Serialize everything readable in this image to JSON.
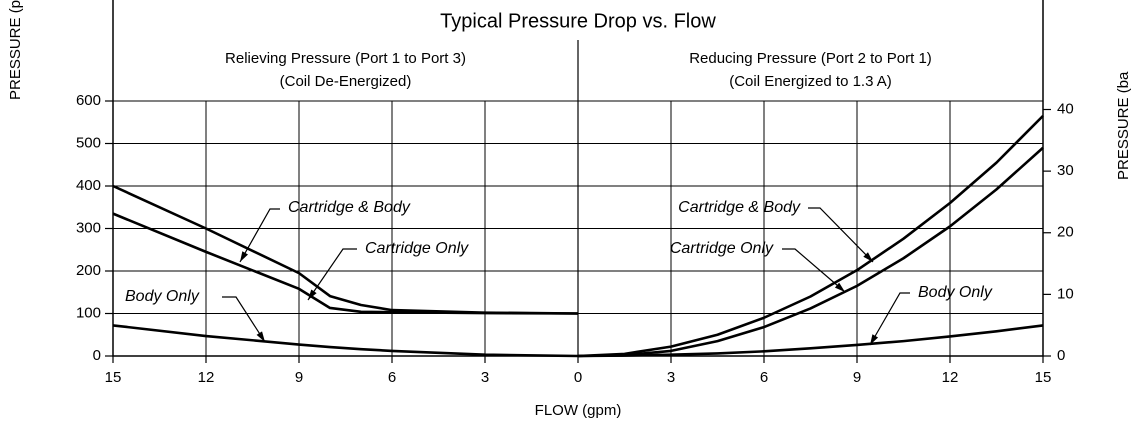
{
  "title": "Typical Pressure Drop vs. Flow",
  "xlabel": "FLOW (gpm)",
  "ylabel": "PRESSURE (p",
  "y2label": "PRESSURE (ba",
  "chart_data": [
    {
      "type": "line",
      "subtitle": [
        "Relieving Pressure (Port 1 to Port 3)",
        "(Coil De-Energized)"
      ],
      "x": [
        15,
        12,
        9,
        8,
        7,
        6,
        3,
        0
      ],
      "xlim": [
        15,
        0
      ],
      "xticks": [
        15,
        12,
        9,
        6,
        3,
        0
      ],
      "ylim": [
        0,
        600
      ],
      "yticks": [
        0,
        100,
        200,
        300,
        400,
        500,
        600
      ],
      "grid": true,
      "series": [
        {
          "name": "Cartridge & Body",
          "color": "#000000",
          "values": [
            400,
            300,
            195,
            141,
            120,
            108,
            102,
            100
          ]
        },
        {
          "name": "Cartridge Only",
          "color": "#000000",
          "values": [
            335,
            245,
            158,
            113,
            104,
            103,
            101,
            100
          ]
        },
        {
          "name": "Body Only",
          "color": "#000000",
          "values": [
            72,
            47,
            27,
            21,
            16,
            12,
            3,
            0
          ]
        }
      ]
    },
    {
      "type": "line",
      "subtitle": [
        "Reducing Pressure (Port 2 to Port 1)",
        "(Coil Energized to 1.3 A)"
      ],
      "x": [
        0,
        1.5,
        3,
        4.5,
        6,
        7.5,
        9,
        10.5,
        12,
        13.5,
        15
      ],
      "xlim": [
        0,
        15
      ],
      "xticks": [
        3,
        6,
        9,
        12,
        15
      ],
      "ylim": [
        0,
        600
      ],
      "y2lim": [
        0,
        41.38
      ],
      "y2ticks": [
        0,
        10,
        20,
        30,
        40
      ],
      "grid": true,
      "series": [
        {
          "name": "Cartridge & Body",
          "color": "#000000",
          "values": [
            0,
            5,
            22,
            50,
            90,
            140,
            202,
            276,
            360,
            455,
            565
          ]
        },
        {
          "name": "Cartridge Only",
          "color": "#000000",
          "values": [
            0,
            2,
            12,
            35,
            68,
            112,
            165,
            230,
            305,
            392,
            490
          ]
        },
        {
          "name": "Body Only",
          "color": "#000000",
          "values": [
            0,
            1,
            3,
            6,
            11,
            18,
            26,
            35,
            46,
            58,
            72
          ]
        }
      ]
    }
  ]
}
